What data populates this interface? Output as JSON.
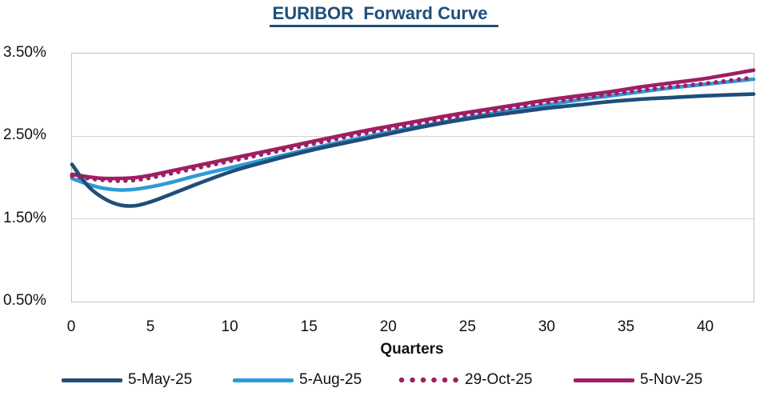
{
  "title": "EURIBOR  Forward Curve",
  "colors": {
    "title": "#1F4E79",
    "navy": "#1F4E79",
    "light_blue": "#2E9BD6",
    "magenta": "#9E1F63",
    "gridline": "#d2d2d2",
    "plot_border": "#c3c3c3",
    "text": "#111111"
  },
  "chart_data": {
    "type": "line",
    "title": "EURIBOR Forward Curve",
    "xlabel": "Quarters",
    "ylabel": "",
    "xlim": [
      0,
      43
    ],
    "ylim": [
      0.5,
      3.5
    ],
    "x_ticks": [
      0,
      5,
      10,
      15,
      20,
      25,
      30,
      35,
      40
    ],
    "y_tick_values": [
      3.5,
      2.5,
      1.5,
      0.5
    ],
    "y_tick_labels": [
      "3.50%",
      "2.50%",
      "1.50%",
      "0.50%"
    ],
    "grid": "horizontal",
    "legend_position": "bottom",
    "x": [
      0,
      1,
      2,
      3,
      4,
      5,
      6,
      8,
      10,
      12,
      14,
      16,
      18,
      20,
      22,
      24,
      26,
      28,
      30,
      32,
      34,
      36,
      38,
      40,
      43
    ],
    "series": [
      {
        "name": "5-May-25",
        "color": "#1F4E79",
        "style": "solid",
        "values": [
          2.16,
          1.9,
          1.75,
          1.67,
          1.66,
          1.71,
          1.78,
          1.93,
          2.07,
          2.18,
          2.28,
          2.37,
          2.45,
          2.53,
          2.61,
          2.68,
          2.74,
          2.79,
          2.84,
          2.88,
          2.92,
          2.95,
          2.97,
          2.99,
          3.01
        ]
      },
      {
        "name": "5-Aug-25",
        "color": "#2E9BD6",
        "style": "solid",
        "values": [
          1.99,
          1.92,
          1.87,
          1.85,
          1.86,
          1.89,
          1.93,
          2.03,
          2.12,
          2.21,
          2.3,
          2.39,
          2.47,
          2.55,
          2.62,
          2.69,
          2.76,
          2.82,
          2.88,
          2.94,
          2.99,
          3.04,
          3.09,
          3.13,
          3.19
        ]
      },
      {
        "name": "29-Oct-25",
        "color": "#9E1F63",
        "style": "dotted",
        "values": [
          2.02,
          1.99,
          1.97,
          1.96,
          1.97,
          2.0,
          2.04,
          2.12,
          2.2,
          2.28,
          2.36,
          2.44,
          2.52,
          2.59,
          2.66,
          2.73,
          2.79,
          2.85,
          2.91,
          2.96,
          3.01,
          3.06,
          3.1,
          3.14,
          3.21
        ]
      },
      {
        "name": "5-Nov-25",
        "color": "#9E1F63",
        "style": "solid",
        "values": [
          2.04,
          2.01,
          1.99,
          1.99,
          2.0,
          2.03,
          2.07,
          2.15,
          2.23,
          2.31,
          2.39,
          2.47,
          2.55,
          2.62,
          2.69,
          2.76,
          2.82,
          2.88,
          2.94,
          2.99,
          3.04,
          3.1,
          3.15,
          3.2,
          3.3
        ]
      }
    ]
  }
}
